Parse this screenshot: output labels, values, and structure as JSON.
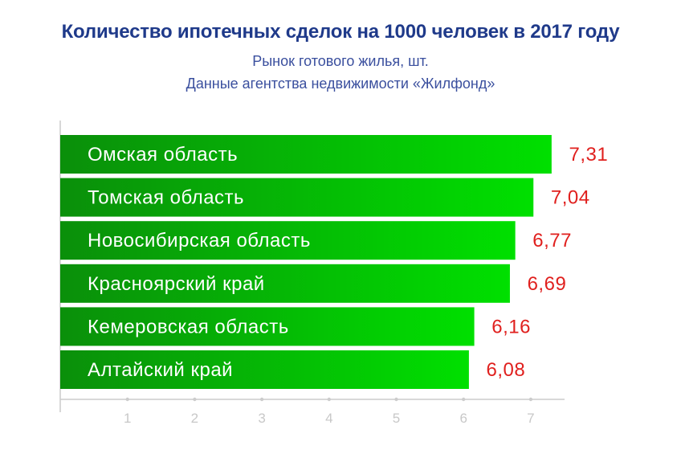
{
  "header": {
    "title": "Количество ипотечных сделок на 1000 человек в 2017 году",
    "subtitle_line1": "Рынок готового жилья, шт.",
    "subtitle_line2": "Данные агентства недвижимости «Жилфонд»"
  },
  "colors": {
    "title": "#1f3a8a",
    "subtitle": "#3a4f9e",
    "bar_dark": "#0a8f0a",
    "bar_light": "#00e000",
    "value_label": "#e0201e",
    "axis": "#cccccc"
  },
  "chart_data": {
    "type": "bar",
    "orientation": "horizontal",
    "title": "Количество ипотечных сделок на 1000 человек в 2017 году",
    "subtitle": "Рынок готового жилья, шт.",
    "categories": [
      "Омская область",
      "Томская область",
      "Новосибирская область",
      "Красноярский край",
      "Кемеровская область",
      "Алтайский край"
    ],
    "values": [
      7.31,
      7.04,
      6.77,
      6.69,
      6.16,
      6.08
    ],
    "value_labels": [
      "7,31",
      "7,04",
      "6,77",
      "6,69",
      "6,16",
      "6,08"
    ],
    "xticks": [
      "1",
      "2",
      "3",
      "4",
      "5",
      "6",
      "7"
    ],
    "xlim": [
      0,
      7.5
    ],
    "xlabel": "",
    "ylabel": "",
    "grid": false,
    "legend": "none"
  }
}
